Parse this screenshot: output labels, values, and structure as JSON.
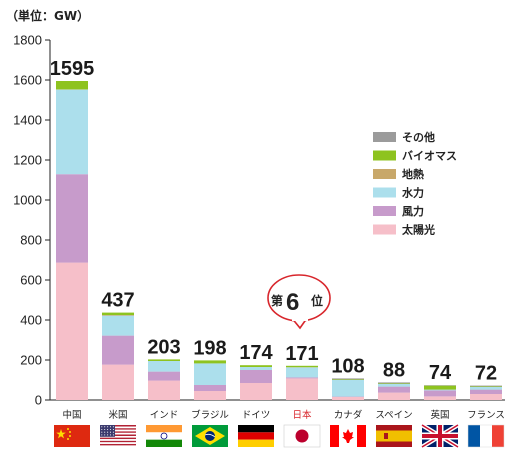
{
  "chart_data": {
    "type": "bar",
    "stacked": true,
    "unit_label": "（単位：GW）",
    "ylim": [
      0,
      1800
    ],
    "yticks": [
      0,
      200,
      400,
      600,
      800,
      1000,
      1200,
      1400,
      1600,
      1800
    ],
    "categories": [
      "中国",
      "米国",
      "インド",
      "ブラジル",
      "ドイツ",
      "日本",
      "カナダ",
      "スペイン",
      "英国",
      "フランス"
    ],
    "highlight_category": "日本",
    "totals": [
      "1595",
      "437",
      "203",
      "198",
      "174",
      "171",
      "108",
      "88",
      "74",
      "72"
    ],
    "series": [
      {
        "name": "太陽光",
        "color": "#f6bfc9",
        "values": [
          687,
          177,
          97,
          45,
          85,
          108,
          15,
          37,
          18,
          30
        ]
      },
      {
        "name": "風力",
        "color": "#c79bcb",
        "values": [
          442,
          145,
          45,
          30,
          65,
          5,
          2,
          30,
          30,
          22
        ]
      },
      {
        "name": "水力",
        "color": "#acdfec",
        "values": [
          423,
          100,
          53,
          108,
          15,
          50,
          83,
          13,
          4,
          13
        ]
      },
      {
        "name": "地熱",
        "color": "#c8a86a",
        "values": [
          1,
          3,
          0,
          0,
          0,
          1,
          0,
          0,
          0,
          0
        ]
      },
      {
        "name": "バイオマス",
        "color": "#8ec31f",
        "values": [
          42,
          12,
          8,
          15,
          9,
          7,
          3,
          3,
          20,
          3
        ]
      },
      {
        "name": "その他",
        "color": "#9b9b9b",
        "values": [
          0,
          0,
          0,
          0,
          0,
          0,
          5,
          5,
          2,
          4
        ]
      }
    ],
    "legend_order": [
      "その他",
      "バイオマス",
      "地熱",
      "水力",
      "風力",
      "太陽光"
    ],
    "legend_position": "right",
    "callout": {
      "prefix": "第",
      "rank": "6",
      "suffix": "位"
    }
  }
}
